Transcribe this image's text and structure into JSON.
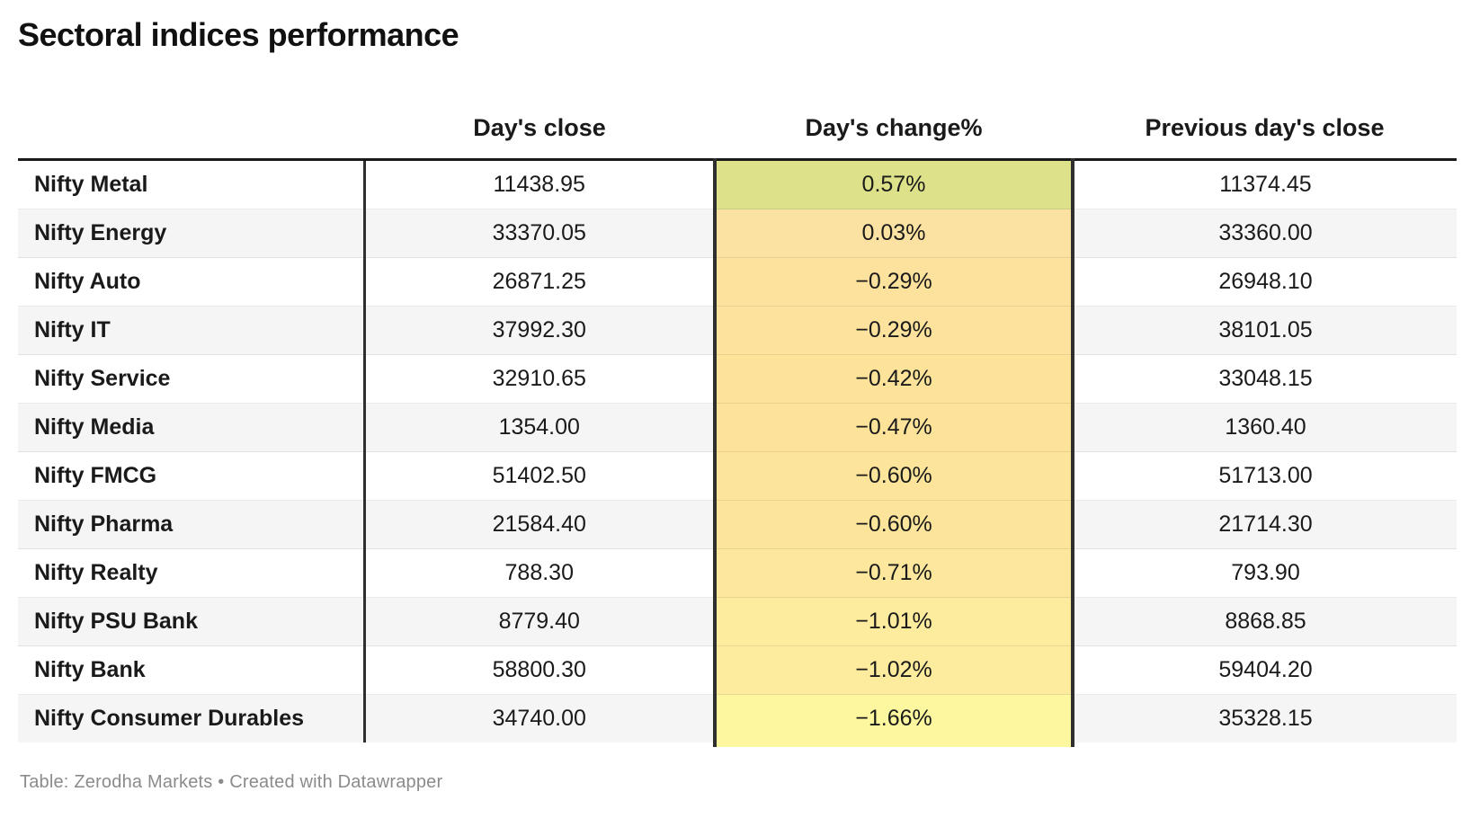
{
  "title": "Sectoral indices performance",
  "table": {
    "columns": {
      "label": "",
      "close": "Day's close",
      "change": "Day's change%",
      "prev": "Previous day's close"
    },
    "rows": [
      {
        "label": "Nifty Metal",
        "close": "11438.95",
        "change": "0.57%",
        "prev": "11374.45",
        "change_color": "#dce18a"
      },
      {
        "label": "Nifty Energy",
        "close": "33370.05",
        "change": "0.03%",
        "prev": "33360.00",
        "change_color": "#fce2a2"
      },
      {
        "label": "Nifty Auto",
        "close": "26871.25",
        "change": "−0.29%",
        "prev": "26948.10",
        "change_color": "#fce29c"
      },
      {
        "label": "Nifty IT",
        "close": "37992.30",
        "change": "−0.29%",
        "prev": "38101.05",
        "change_color": "#fce29c"
      },
      {
        "label": "Nifty Service",
        "close": "32910.65",
        "change": "−0.42%",
        "prev": "33048.15",
        "change_color": "#fce399"
      },
      {
        "label": "Nifty Media",
        "close": "1354.00",
        "change": "−0.47%",
        "prev": "1360.40",
        "change_color": "#fce399"
      },
      {
        "label": "Nifty FMCG",
        "close": "51402.50",
        "change": "−0.60%",
        "prev": "51713.00",
        "change_color": "#fce59a"
      },
      {
        "label": "Nifty Pharma",
        "close": "21584.40",
        "change": "−0.60%",
        "prev": "21714.30",
        "change_color": "#fce59a"
      },
      {
        "label": "Nifty Realty",
        "close": "788.30",
        "change": "−0.71%",
        "prev": "793.90",
        "change_color": "#fde79c"
      },
      {
        "label": "Nifty PSU Bank",
        "close": "8779.40",
        "change": "−1.01%",
        "prev": "8868.85",
        "change_color": "#fdeb9e"
      },
      {
        "label": "Nifty Bank",
        "close": "58800.30",
        "change": "−1.02%",
        "prev": "59404.20",
        "change_color": "#fdeb9e"
      },
      {
        "label": "Nifty Consumer Durables",
        "close": "34740.00",
        "change": "−1.66%",
        "prev": "35328.15",
        "change_color": "#fdf89f"
      }
    ]
  },
  "footer": {
    "prefix": "Table: ",
    "source": "Zerodha Markets",
    "separator": " • Created with ",
    "brand": "Datawrapper"
  },
  "colors": {
    "header_border": "#1a1a1a",
    "column_divider": "#2f2f2f",
    "row_alt_bg": "#f5f5f5",
    "positive_cell": "#dce18a",
    "negative_cell_light": "#fdf89f",
    "footer_text": "#8b8b8b"
  }
}
